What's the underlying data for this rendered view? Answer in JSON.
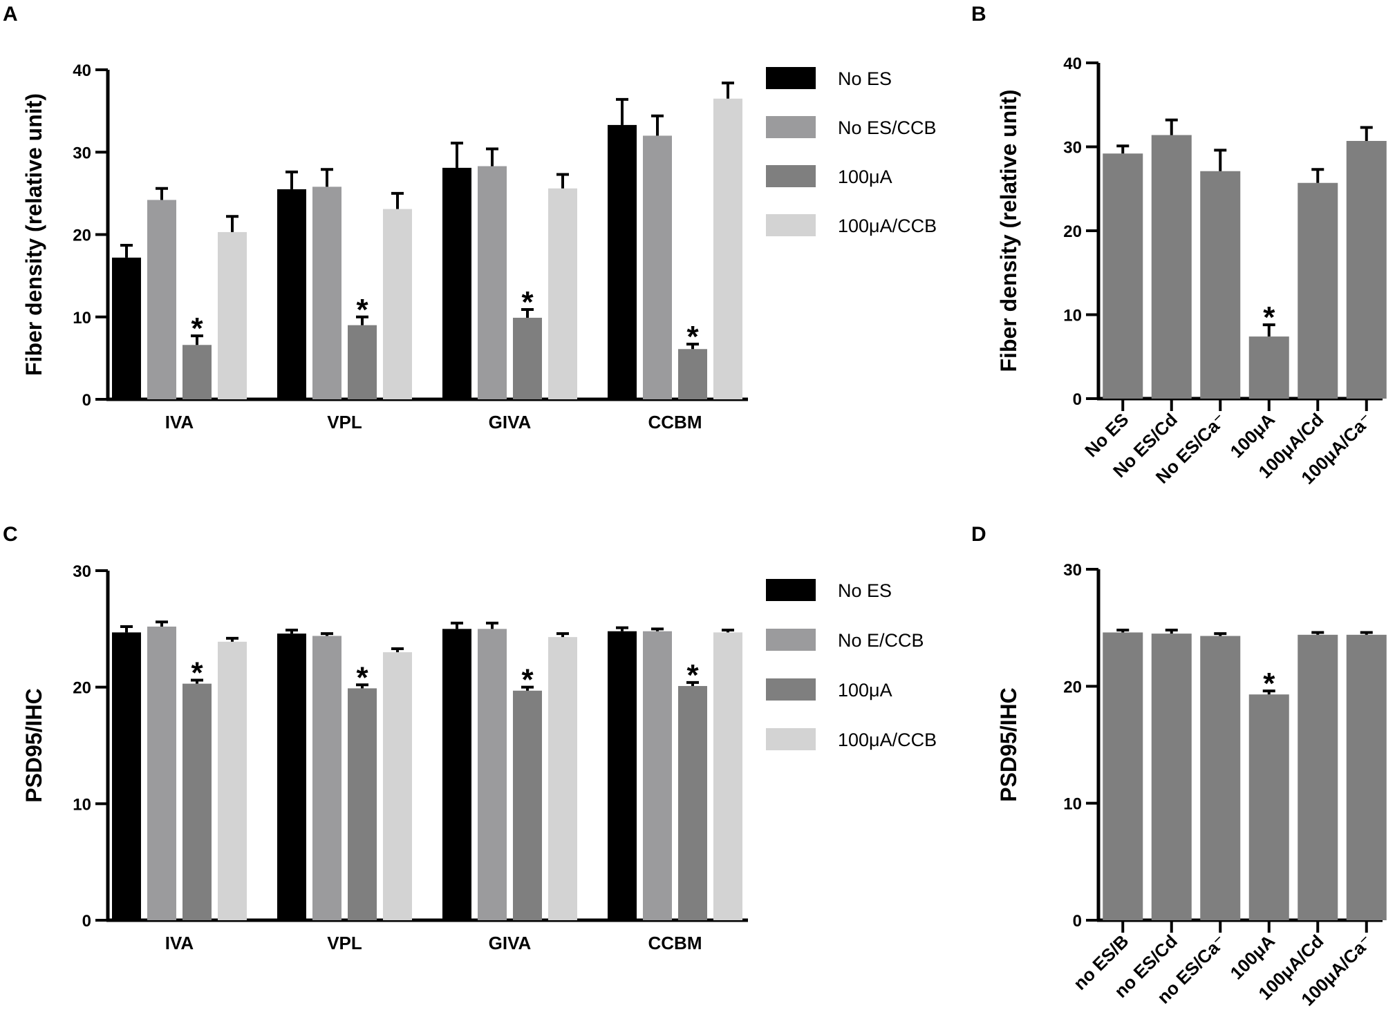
{
  "colors": {
    "no_es": "#000000",
    "no_es_ccb": "#9b9b9d",
    "ua100": "#7f7f7f",
    "ua100_ccb": "#d3d3d3",
    "single": "#7f7f7f",
    "axis": "#000000"
  },
  "chart_data": [
    {
      "panel": "A",
      "type": "bar",
      "ylabel": "Fiber density (relative unit)",
      "xlabel": "",
      "ylim": [
        0,
        40
      ],
      "yticks": [
        0,
        10,
        20,
        30,
        40
      ],
      "categories": [
        "IVA",
        "VPL",
        "GIVA",
        "CCBM"
      ],
      "series": [
        {
          "name": "No ES",
          "color": "#000000",
          "values": [
            17.2,
            25.5,
            28.1,
            33.3
          ],
          "errors": [
            1.5,
            2.1,
            3.0,
            3.1
          ],
          "sig": [
            false,
            false,
            false,
            false
          ]
        },
        {
          "name": "No ES/CCB",
          "color": "#9b9b9d",
          "values": [
            24.2,
            25.8,
            28.3,
            32.0
          ],
          "errors": [
            1.4,
            2.1,
            2.1,
            2.4
          ],
          "sig": [
            false,
            false,
            false,
            false
          ]
        },
        {
          "name": "100μA",
          "color": "#7f7f7f",
          "values": [
            6.6,
            9.0,
            9.9,
            6.1
          ],
          "errors": [
            1.1,
            1.0,
            1.0,
            0.6
          ],
          "sig": [
            true,
            true,
            true,
            true
          ]
        },
        {
          "name": "100μA/CCB",
          "color": "#d3d3d3",
          "values": [
            20.3,
            23.1,
            25.6,
            36.5
          ],
          "errors": [
            1.9,
            1.9,
            1.7,
            1.9
          ],
          "sig": [
            false,
            false,
            false,
            false
          ]
        }
      ],
      "significance_marker": "*",
      "legend_position": "right"
    },
    {
      "panel": "B",
      "type": "bar",
      "ylabel": "Fiber density (relative unit)",
      "xlabel": "",
      "ylim": [
        0,
        40
      ],
      "yticks": [
        0,
        10,
        20,
        30,
        40
      ],
      "categories": [
        "No ES",
        "No ES/Cd",
        "No ES/Ca⁻",
        "100μA",
        "100μA/Cd",
        "100μA/Ca⁻"
      ],
      "series": [
        {
          "name": "Fiber density",
          "color": "#7f7f7f",
          "values": [
            29.2,
            31.4,
            27.1,
            7.4,
            25.7,
            30.7
          ],
          "errors": [
            0.9,
            1.8,
            2.5,
            1.4,
            1.6,
            1.6
          ],
          "sig": [
            false,
            false,
            false,
            true,
            false,
            false
          ]
        }
      ],
      "significance_marker": "*"
    },
    {
      "panel": "C",
      "type": "bar",
      "ylabel": "PSD95/IHC",
      "xlabel": "",
      "ylim": [
        0,
        30
      ],
      "yticks": [
        0,
        10,
        20,
        30
      ],
      "categories": [
        "IVA",
        "VPL",
        "GIVA",
        "CCBM"
      ],
      "series": [
        {
          "name": "No ES",
          "color": "#000000",
          "values": [
            24.7,
            24.6,
            25.0,
            24.8
          ],
          "errors": [
            0.5,
            0.3,
            0.5,
            0.3
          ],
          "sig": [
            false,
            false,
            false,
            false
          ]
        },
        {
          "name": "No E/CCB",
          "color": "#9b9b9d",
          "values": [
            25.2,
            24.4,
            25.0,
            24.8
          ],
          "errors": [
            0.4,
            0.2,
            0.5,
            0.2
          ],
          "sig": [
            false,
            false,
            false,
            false
          ]
        },
        {
          "name": "100μA",
          "color": "#7f7f7f",
          "values": [
            20.3,
            19.9,
            19.7,
            20.1
          ],
          "errors": [
            0.3,
            0.3,
            0.3,
            0.3
          ],
          "sig": [
            true,
            true,
            true,
            true
          ]
        },
        {
          "name": "100μA/CCB",
          "color": "#d3d3d3",
          "values": [
            23.9,
            23.0,
            24.3,
            24.7
          ],
          "errors": [
            0.3,
            0.3,
            0.3,
            0.2
          ],
          "sig": [
            false,
            false,
            false,
            false
          ]
        }
      ],
      "significance_marker": "*",
      "legend_position": "right"
    },
    {
      "panel": "D",
      "type": "bar",
      "ylabel": "PSD95/IHC",
      "xlabel": "",
      "ylim": [
        0,
        30
      ],
      "yticks": [
        0,
        10,
        20,
        30
      ],
      "categories": [
        "no ES/B",
        "no ES/Cd",
        "no ES/Ca⁻",
        "100μA",
        "100μA/Cd",
        "100μA/Ca⁻"
      ],
      "series": [
        {
          "name": "PSD95/IHC",
          "color": "#7f7f7f",
          "values": [
            24.6,
            24.5,
            24.3,
            19.3,
            24.4,
            24.4
          ],
          "errors": [
            0.2,
            0.3,
            0.2,
            0.3,
            0.2,
            0.2
          ],
          "sig": [
            false,
            false,
            false,
            true,
            false,
            false
          ]
        }
      ],
      "significance_marker": "*"
    }
  ]
}
